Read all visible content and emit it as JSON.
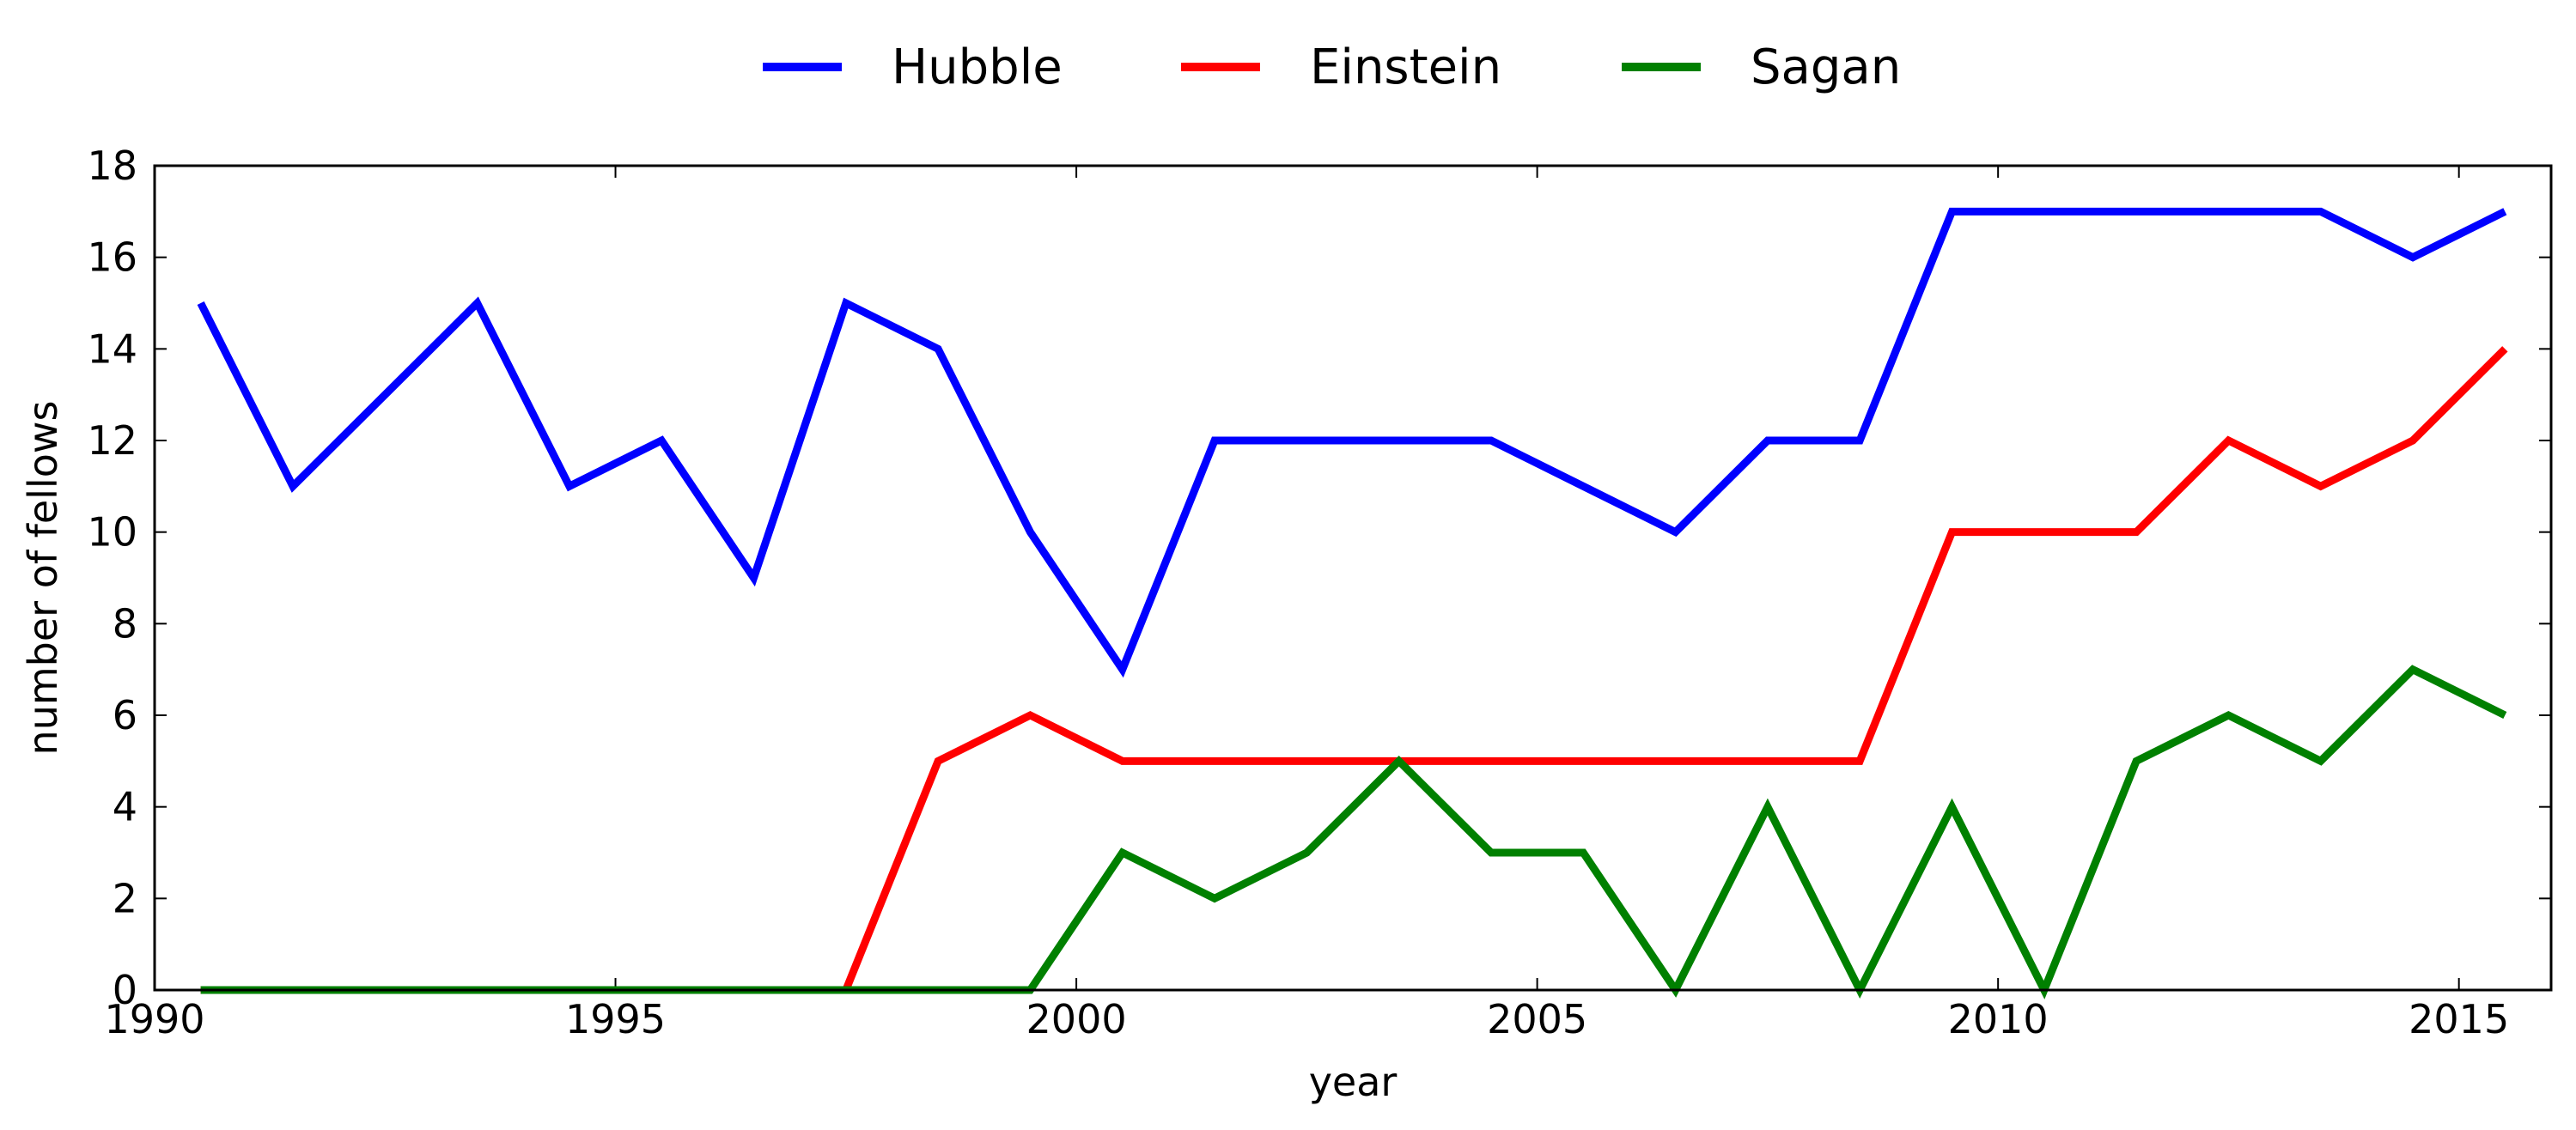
{
  "chart_data": {
    "type": "line",
    "title": "",
    "xlabel": "year",
    "ylabel": "number of fellows",
    "xlim": [
      1990,
      2016
    ],
    "ylim": [
      0,
      18
    ],
    "xticks": [
      1990,
      1995,
      2000,
      2005,
      2010,
      2015
    ],
    "yticks": [
      0,
      2,
      4,
      6,
      8,
      10,
      12,
      14,
      16,
      18
    ],
    "grid": false,
    "legend_position": "top-center",
    "x": [
      1990.5,
      1991.5,
      1992.5,
      1993.5,
      1994.5,
      1995.5,
      1996.5,
      1997.5,
      1998.5,
      1999.5,
      2000.5,
      2001.5,
      2002.5,
      2003.5,
      2004.5,
      2005.5,
      2006.5,
      2007.5,
      2008.5,
      2009.5,
      2010.5,
      2011.5,
      2012.5,
      2013.5,
      2014.5,
      2015.5
    ],
    "series": [
      {
        "name": "Hubble",
        "color": "#0000ff",
        "values": [
          15,
          11,
          13,
          15,
          11,
          12,
          9,
          15,
          14,
          10,
          7,
          12,
          12,
          12,
          12,
          11,
          10,
          12,
          12,
          17,
          17,
          17,
          17,
          17,
          16,
          17
        ]
      },
      {
        "name": "Einstein",
        "color": "#ff0000",
        "values": [
          0,
          0,
          0,
          0,
          0,
          0,
          0,
          0,
          5,
          6,
          5,
          5,
          5,
          5,
          5,
          5,
          5,
          5,
          5,
          10,
          10,
          10,
          12,
          11,
          12,
          14
        ]
      },
      {
        "name": "Sagan",
        "color": "#008000",
        "values": [
          0,
          0,
          0,
          0,
          0,
          0,
          0,
          0,
          0,
          0,
          3,
          2,
          3,
          5,
          3,
          3,
          0,
          4,
          0,
          4,
          0,
          5,
          6,
          5,
          7,
          6
        ]
      }
    ]
  }
}
